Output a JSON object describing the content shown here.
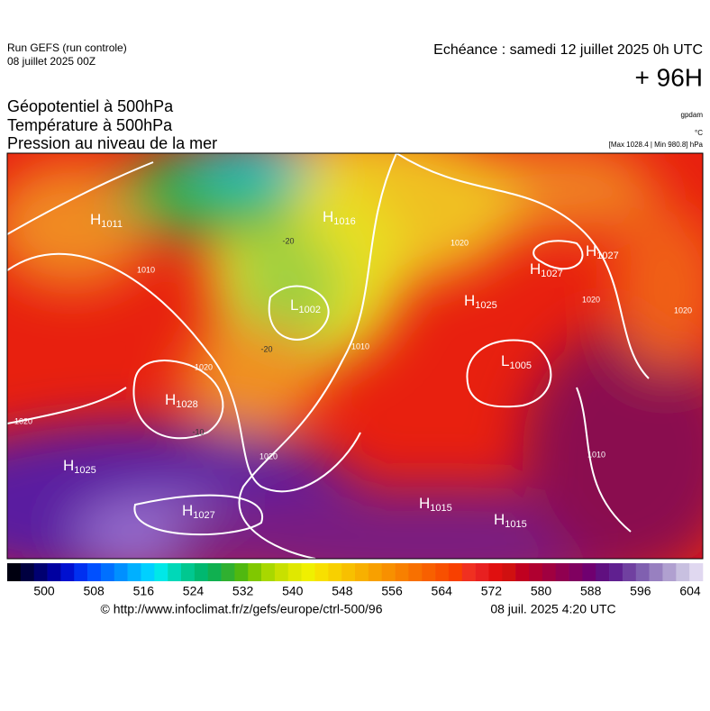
{
  "header": {
    "run": "Run GEFS (run controle)",
    "run_date": "08 juillet 2025 00Z",
    "valid": "Echéance : samedi 12 juillet 2025 0h UTC",
    "lead": "+ 96H",
    "titles": [
      "Géopotentiel à 500hPa",
      "Température à 500hPa",
      "Pression au niveau de la mer"
    ],
    "units": [
      "gpdam",
      "°C",
      "[Max 1028.4 | Min 980.8] hPa"
    ]
  },
  "map": {
    "centers": [
      {
        "letter": "H",
        "value": "1011"
      },
      {
        "letter": "H",
        "value": "1016"
      },
      {
        "letter": "L",
        "value": "1002"
      },
      {
        "letter": "H",
        "value": "1025"
      },
      {
        "letter": "H",
        "value": "1027"
      },
      {
        "letter": "H",
        "value": "1027"
      },
      {
        "letter": "L",
        "value": "1005"
      },
      {
        "letter": "H",
        "value": "1028"
      },
      {
        "letter": "H",
        "value": "1025"
      },
      {
        "letter": "H",
        "value": "1027"
      },
      {
        "letter": "H",
        "value": "1015"
      },
      {
        "letter": "H",
        "value": "1015"
      }
    ],
    "contour_labels": [
      "1010",
      "1020",
      "1020",
      "1020",
      "1010",
      "1020",
      "1020",
      "1010",
      "1020",
      "-20",
      "-20",
      "-10"
    ]
  },
  "colorbar": {
    "ticks": [
      500,
      508,
      516,
      524,
      532,
      540,
      548,
      556,
      564,
      572,
      580,
      588,
      596,
      604
    ]
  },
  "footer": {
    "url": "© http://www.infoclimat.fr/z/gefs/europe/ctrl-500/96",
    "time": "08 juil. 2025  4:20 UTC"
  }
}
